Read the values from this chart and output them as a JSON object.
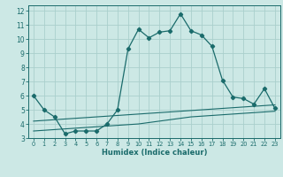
{
  "xlabel": "Humidex (Indice chaleur)",
  "bg_color": "#cce8e5",
  "line_color": "#1a6b6b",
  "grid_color": "#aacfcc",
  "xlim": [
    -0.5,
    23.5
  ],
  "ylim": [
    3,
    12.4
  ],
  "xticks": [
    0,
    1,
    2,
    3,
    4,
    5,
    6,
    7,
    8,
    9,
    10,
    11,
    12,
    13,
    14,
    15,
    16,
    17,
    18,
    19,
    20,
    21,
    22,
    23
  ],
  "yticks": [
    3,
    4,
    5,
    6,
    7,
    8,
    9,
    10,
    11,
    12
  ],
  "line1_x": [
    0,
    1,
    2,
    3,
    4,
    5,
    6,
    7,
    8,
    9,
    10,
    11,
    12,
    13,
    14,
    15,
    16,
    17,
    18,
    19,
    20,
    21,
    22,
    23
  ],
  "line1_y": [
    6.0,
    5.0,
    4.5,
    3.3,
    3.5,
    3.5,
    3.5,
    4.0,
    5.0,
    9.3,
    10.7,
    10.1,
    10.5,
    10.6,
    11.8,
    10.6,
    10.3,
    9.5,
    7.1,
    5.9,
    5.8,
    5.4,
    6.5,
    5.1
  ],
  "line2_x": [
    0,
    1,
    2,
    3,
    4,
    5,
    6,
    7,
    8,
    9,
    10,
    11,
    12,
    13,
    14,
    15,
    16,
    17,
    18,
    19,
    20,
    21,
    22,
    23
  ],
  "line2_y": [
    4.2,
    4.25,
    4.3,
    4.35,
    4.4,
    4.45,
    4.5,
    4.55,
    4.6,
    4.65,
    4.7,
    4.75,
    4.8,
    4.85,
    4.9,
    4.95,
    5.0,
    5.05,
    5.1,
    5.15,
    5.2,
    5.25,
    5.3,
    5.35
  ],
  "line3_x": [
    0,
    1,
    2,
    3,
    4,
    5,
    6,
    7,
    8,
    9,
    10,
    11,
    12,
    13,
    14,
    15,
    16,
    17,
    18,
    19,
    20,
    21,
    22,
    23
  ],
  "line3_y": [
    3.5,
    3.55,
    3.6,
    3.65,
    3.7,
    3.75,
    3.8,
    3.85,
    3.9,
    3.95,
    4.0,
    4.1,
    4.2,
    4.3,
    4.4,
    4.5,
    4.55,
    4.6,
    4.65,
    4.7,
    4.75,
    4.8,
    4.85,
    4.9
  ]
}
